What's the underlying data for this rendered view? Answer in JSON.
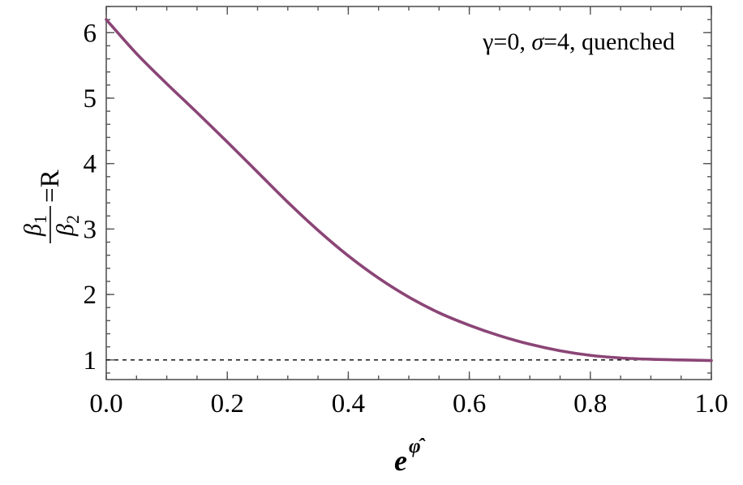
{
  "chart_data": {
    "type": "line",
    "annotation": {
      "gamma_part": "γ=0, ",
      "sigma_symbol": "σ",
      "sigma_rest": "=4, quenched"
    },
    "xlabel": {
      "base": "e",
      "superscript": "φ̂"
    },
    "ylabel": {
      "numerator": "β",
      "numerator_sub": "1",
      "denominator": "β",
      "denominator_sub": "2",
      "suffix": "=R"
    },
    "xlim": [
      0.0,
      1.0
    ],
    "ylim": [
      0.7,
      6.4
    ],
    "x_ticks": [
      {
        "value": 0.0,
        "label": "0.0"
      },
      {
        "value": 0.2,
        "label": "0.2"
      },
      {
        "value": 0.4,
        "label": "0.4"
      },
      {
        "value": 0.6,
        "label": "0.6"
      },
      {
        "value": 0.8,
        "label": "0.8"
      },
      {
        "value": 1.0,
        "label": "1.0"
      }
    ],
    "x_minor_step": 0.05,
    "y_ticks": [
      {
        "value": 1,
        "label": "1"
      },
      {
        "value": 2,
        "label": "2"
      },
      {
        "value": 3,
        "label": "3"
      },
      {
        "value": 4,
        "label": "4"
      },
      {
        "value": 5,
        "label": "5"
      },
      {
        "value": 6,
        "label": "6"
      }
    ],
    "y_minor_step": 0.2,
    "grid": false,
    "reference_line": {
      "y": 1,
      "style": "dashed",
      "color": "#000000"
    },
    "series": [
      {
        "color": "#8b4576",
        "x": [
          0.0,
          0.05,
          0.1,
          0.15,
          0.2,
          0.25,
          0.3,
          0.35,
          0.4,
          0.45,
          0.5,
          0.55,
          0.6,
          0.65,
          0.7,
          0.75,
          0.8,
          0.85,
          0.9,
          0.95,
          1.0
        ],
        "y": [
          6.2,
          5.68,
          5.22,
          4.78,
          4.33,
          3.87,
          3.41,
          2.98,
          2.59,
          2.25,
          1.96,
          1.72,
          1.53,
          1.37,
          1.24,
          1.14,
          1.07,
          1.03,
          1.01,
          1.0,
          0.99
        ]
      }
    ],
    "legend": "none"
  }
}
